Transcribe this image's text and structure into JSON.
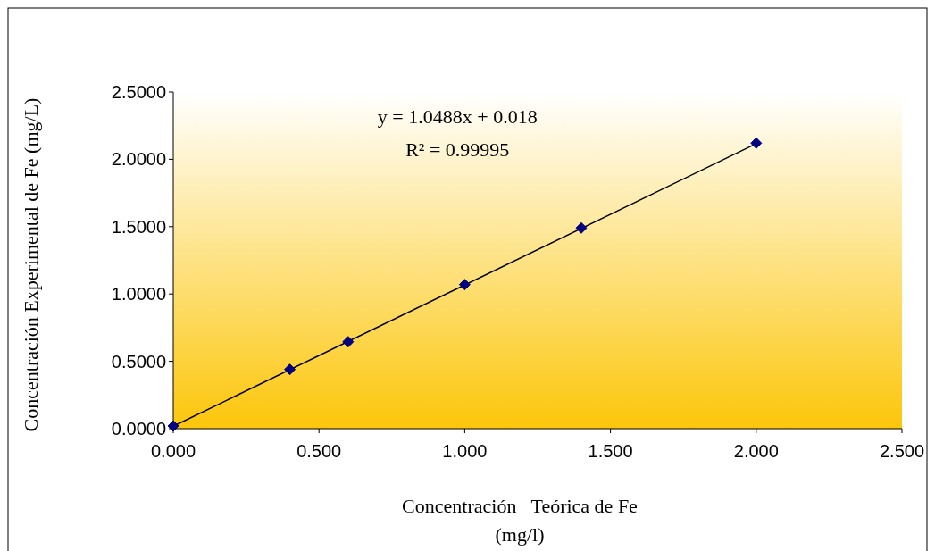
{
  "chart_data": {
    "type": "scatter",
    "xlabel": "Concentración   Teórica de Fe (mg/l)",
    "ylabel": "Concentración Experimental de Fe (mg/L)",
    "grid": false,
    "xlim": [
      0,
      2.5
    ],
    "ylim": [
      0,
      2.5
    ],
    "xticks": [
      {
        "value": 0,
        "label": "0.000"
      },
      {
        "value": 0.5,
        "label": "0.500"
      },
      {
        "value": 1,
        "label": "1.000"
      },
      {
        "value": 1.5,
        "label": "1.500"
      },
      {
        "value": 2,
        "label": "2.000"
      },
      {
        "value": 2.5,
        "label": "2.500"
      }
    ],
    "yticks": [
      {
        "value": 0,
        "label": "0.0000"
      },
      {
        "value": 0.5,
        "label": "0.5000"
      },
      {
        "value": 1,
        "label": "1.0000"
      },
      {
        "value": 1.5,
        "label": "1.5000"
      },
      {
        "value": 2,
        "label": "2.0000"
      },
      {
        "value": 2.5,
        "label": "2.5000"
      }
    ],
    "series": [
      {
        "marker": "diamond",
        "color": "#000080",
        "x": [
          0,
          0.4,
          0.6,
          1.0,
          1.4,
          2.0
        ],
        "values": [
          0.02,
          0.44,
          0.645,
          1.07,
          1.49,
          2.12
        ]
      },
      {
        "type": "line",
        "color": "#000000",
        "x": [
          0,
          2.0
        ],
        "values": [
          0.018,
          2.116
        ]
      }
    ],
    "annotations": [
      "y = 1.0488x + 0.018",
      "R² = 0.99995"
    ]
  }
}
